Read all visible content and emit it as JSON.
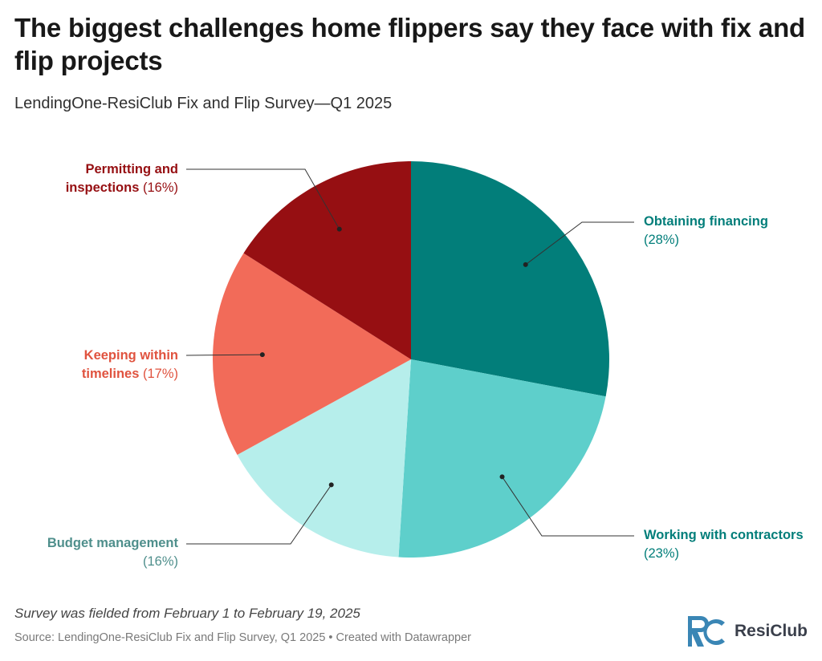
{
  "header": {
    "title": "The biggest challenges home flippers say they face with fix and flip projects",
    "subtitle": "LendingOne-ResiClub Fix and Flip Survey—Q1 2025"
  },
  "chart_data": {
    "type": "pie",
    "title": "The biggest challenges home flippers say they face with fix and flip projects",
    "subtitle": "LendingOne-ResiClub Fix and Flip Survey—Q1 2025",
    "unit": "%",
    "slices": [
      {
        "name": "Obtaining financing",
        "value": 28,
        "label": "(28%)",
        "color": "#027e7a"
      },
      {
        "name": "Working with contractors",
        "value": 23,
        "label": "(23%)",
        "color": "#5ecfcb"
      },
      {
        "name": "Budget management",
        "value": 16,
        "label": "(16%)",
        "color": "#b6eeeb"
      },
      {
        "name": "Keeping within timelines",
        "value": 17,
        "label": "(17%)",
        "color": "#f26b59"
      },
      {
        "name": "Permitting and inspections",
        "value": 16,
        "label": "(16%)",
        "color": "#960f12"
      }
    ],
    "label_colors": {
      "Obtaining financing": "#027e7a",
      "Working with contractors": "#027e7a",
      "Budget management": "#4f8f8c",
      "Keeping within timelines": "#e0533f",
      "Permitting and inspections": "#960f12"
    },
    "legend": "direct-labels"
  },
  "footer": {
    "note": "Survey was fielded from February 1 to February 19, 2025",
    "source": "Source: LendingOne-ResiClub Fix and Flip Survey, Q1 2025 • Created with Datawrapper"
  },
  "logo": {
    "text": "ResiClub",
    "colors": {
      "mark": "#3a86b5",
      "text": "#3a3f4b"
    }
  }
}
